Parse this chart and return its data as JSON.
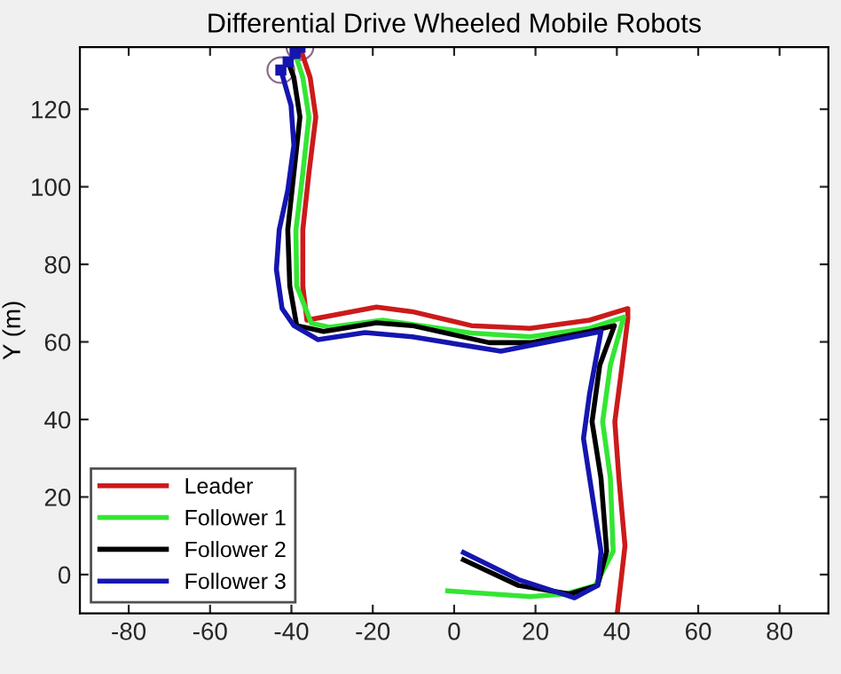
{
  "chart_data": {
    "type": "line",
    "title": "Differential Drive Wheeled Mobile Robots",
    "ylabel": "Y (m)",
    "xlim": [
      -92,
      92
    ],
    "ylim": [
      -10,
      136
    ],
    "xticks": [
      -80,
      -60,
      -40,
      -20,
      0,
      20,
      40,
      60,
      80
    ],
    "yticks": [
      0,
      20,
      40,
      60,
      80,
      100,
      120
    ],
    "grid": false,
    "legend": "bottom left",
    "line_style": "solid",
    "series": [
      {
        "name": "Leader",
        "color": "#cc1a1a",
        "x": [
          40.1,
          42,
          40.5,
          39.5,
          41.3,
          42.7,
          42.7,
          33.3,
          18.7,
          4.2,
          -10.3,
          -19.1,
          -32.1,
          -36.2,
          -37.2,
          -37.2,
          -35.7,
          -34,
          -35.4,
          -37.9
        ],
        "values": [
          -10,
          7.4,
          24.9,
          39.4,
          54,
          66,
          68.6,
          65.6,
          63.5,
          64.2,
          67.8,
          69,
          66.4,
          65.6,
          74.4,
          88.9,
          103.5,
          118,
          128.2,
          136
        ]
      },
      {
        "name": "Follower 1",
        "color": "#33e633",
        "x": [
          -1.6,
          18.7,
          27.4,
          34.7,
          39.1,
          38.4,
          36.5,
          38.4,
          41.7,
          33.3,
          18.7,
          4.2,
          -17.6,
          -30.7,
          -35.1,
          -38.7,
          -38.9,
          -37.2,
          -35.7,
          -37.2,
          -39.1
        ],
        "values": [
          -4.2,
          -5.7,
          -5,
          -2.8,
          6,
          24.9,
          39.4,
          54,
          66.4,
          63.5,
          61.3,
          62.3,
          65.6,
          63.8,
          64.8,
          74.4,
          88.9,
          103.5,
          118,
          128.2,
          134.4
        ]
      },
      {
        "name": "Follower 2",
        "color": "#000000",
        "x": [
          2.3,
          15.8,
          28.4,
          35.3,
          37.5,
          36.1,
          33.9,
          35.8,
          39.4,
          33.3,
          18.7,
          8.6,
          -10.3,
          -19.1,
          -32.1,
          -38.7,
          -40.4,
          -40.9,
          -39.4,
          -37.9,
          -39.4,
          -40.8
        ],
        "values": [
          3.8,
          -2.8,
          -5,
          -2.8,
          6,
          24.9,
          39.4,
          54,
          64.2,
          62.7,
          59.8,
          59.8,
          64.2,
          64.9,
          62.7,
          64.2,
          74.4,
          88.9,
          103.5,
          118,
          128.2,
          132.2
        ]
      },
      {
        "name": "Follower 3",
        "color": "#1515b0",
        "x": [
          2.3,
          15.8,
          29.6,
          35.3,
          36.1,
          33.3,
          31.8,
          33.3,
          36.1,
          11.5,
          -10.3,
          -21.9,
          -33.5,
          -39.4,
          -42.3,
          -43.7,
          -43,
          -40.9,
          -39.4,
          -40.1,
          -42.6
        ],
        "values": [
          5.7,
          -1.3,
          -6,
          -2.8,
          6,
          24.9,
          35.1,
          46.7,
          62.7,
          57.6,
          61.3,
          62.4,
          60.6,
          64.2,
          68.6,
          78.7,
          88.9,
          99.1,
          110.7,
          121,
          130.1
        ]
      }
    ]
  }
}
